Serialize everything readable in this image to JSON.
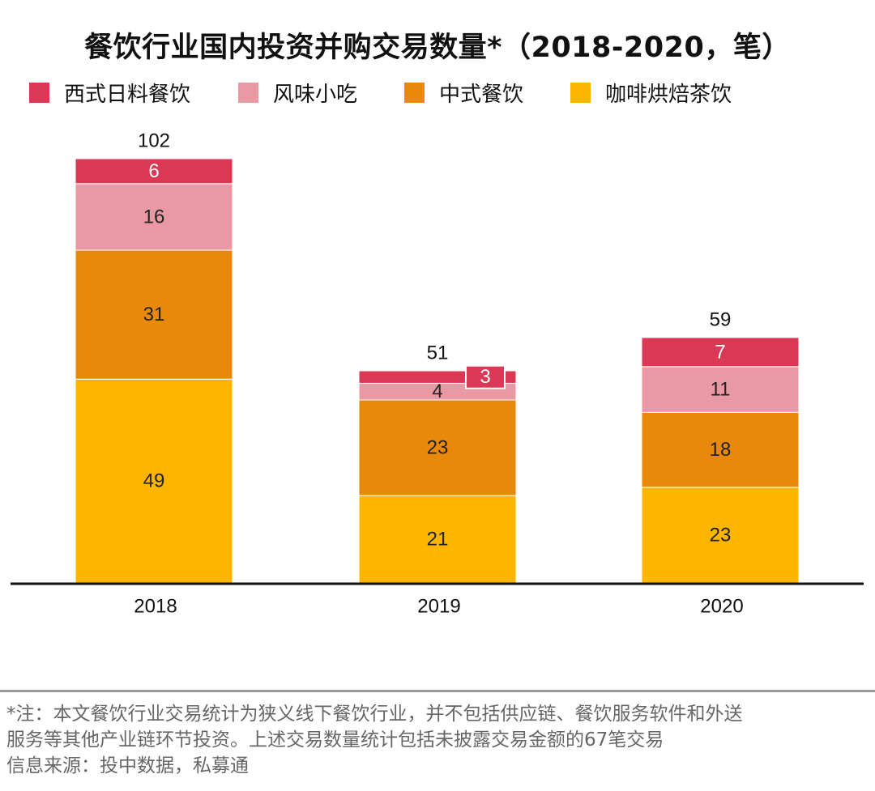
{
  "title": "餐饮行业国内投资并购交易数量*（2018-2020，笔）",
  "chart_data": {
    "type": "bar",
    "stacked": true,
    "title": "餐饮行业国内投资并购交易数量*（2018-2020，笔）",
    "categories": [
      "2018",
      "2019",
      "2020"
    ],
    "series": [
      {
        "name": "咖啡烘焙茶饮",
        "color": "#FDB600",
        "values": [
          49,
          21,
          23
        ]
      },
      {
        "name": "中式餐饮",
        "color": "#E8890B",
        "values": [
          31,
          23,
          18
        ]
      },
      {
        "name": "风味小吃",
        "color": "#E899A3",
        "values": [
          16,
          4,
          11
        ]
      },
      {
        "name": "西式日料餐饮",
        "color": "#D93954",
        "values": [
          6,
          3,
          7
        ]
      }
    ],
    "totals": [
      "102",
      "51",
      "59"
    ],
    "legend_order": [
      "西式日料餐饮",
      "风味小吃",
      "中式餐饮",
      "咖啡烘焙茶饮"
    ],
    "ylim": [
      0,
      102
    ],
    "xlabel": "",
    "ylabel": ""
  },
  "footnote": {
    "line1": "*注：本文餐饮行业交易统计为狭义线下餐饮行业，并不包括供应链、餐饮服务软件和外送",
    "line2": "服务等其他产业链环节投资。上述交易数量统计包括未披露交易金额的67笔交易",
    "line3": "信息来源：投中数据，私募通"
  }
}
